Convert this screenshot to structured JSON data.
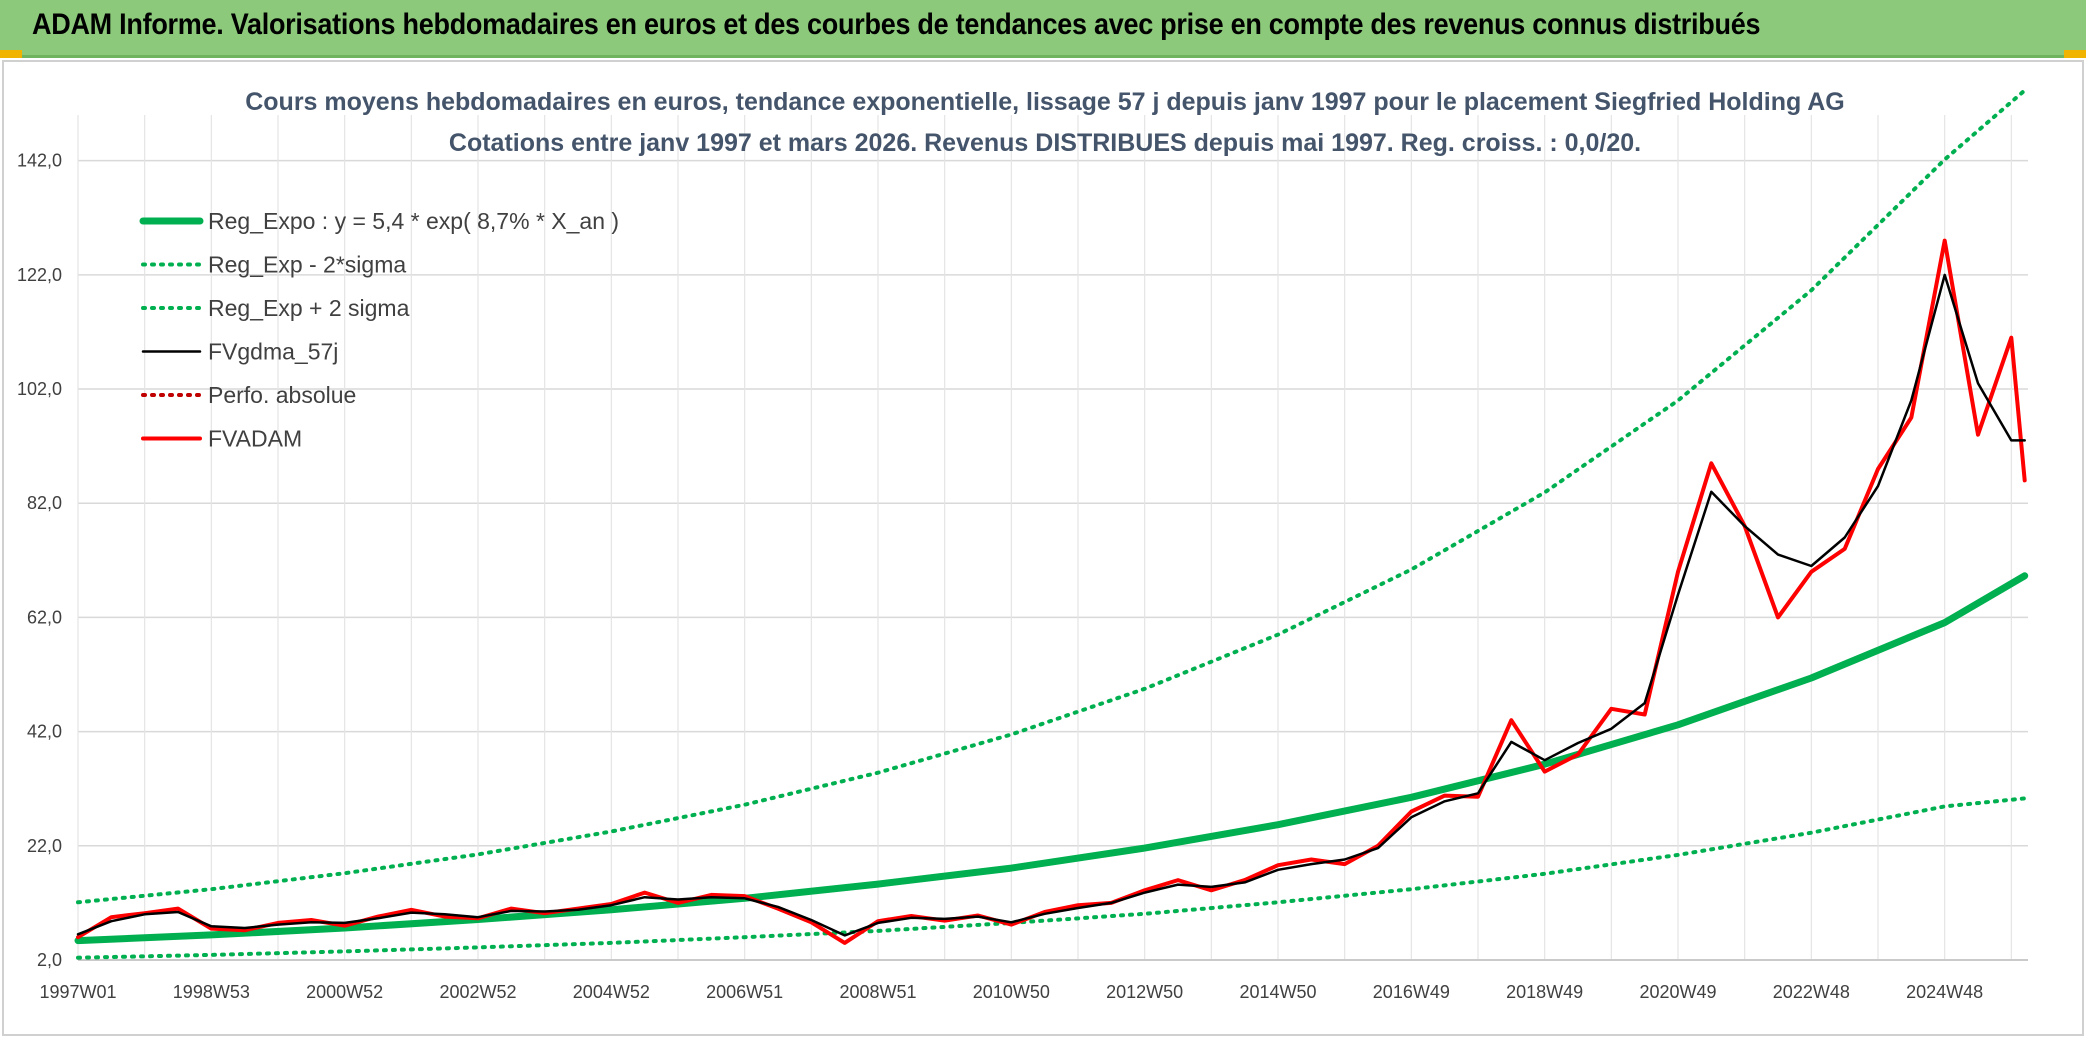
{
  "banner": {
    "title": "ADAM Informe. Valorisations hebdomadaires en euros et des courbes de tendances avec prise en compte des revenus connus distribués",
    "background": "#8cc97a",
    "corner_color": "#f0b400"
  },
  "chart_data": {
    "type": "line",
    "title": "Cours moyens hebdomadaires en euros, tendance exponentielle, lissage 57 j depuis janv 1997 pour le placement Siegfried Holding AG",
    "subtitle": "Cotations entre janv 1997 et mars 2026. Revenus DISTRIBUES depuis mai 1997. Reg. croiss. : 0,0/20.",
    "xlabel": "",
    "ylabel": "",
    "x_range": [
      1997.0,
      2026.25
    ],
    "ylim": [
      2.0,
      150.0
    ],
    "yticks": [
      2.0,
      22.0,
      42.0,
      62.0,
      82.0,
      102.0,
      122.0,
      142.0
    ],
    "ytick_labels": [
      "2,0",
      "22,0",
      "42,0",
      "62,0",
      "82,0",
      "102,0",
      "122,0",
      "142,0"
    ],
    "xticks": [
      1997.0,
      1999.0,
      2001.0,
      2003.0,
      2005.0,
      2007.0,
      2009.0,
      2011.0,
      2013.0,
      2015.0,
      2017.0,
      2019.0,
      2021.0,
      2023.0,
      2025.0
    ],
    "xtick_labels": [
      "1997W01",
      "1998W53",
      "2000W52",
      "2002W52",
      "2004W52",
      "2006W51",
      "2008W51",
      "2010W50",
      "2012W50",
      "2014W50",
      "2016W49",
      "2018W49",
      "2020W49",
      "2022W48",
      "2024W48"
    ],
    "grid": true,
    "legend_position": "top-left",
    "series": [
      {
        "name": "Reg_Expo : y = 5,4 * exp( 8,7% *  X_an )",
        "color": "#00b050",
        "style": "solid-thick",
        "x": [
          1997.0,
          1999.0,
          2001.0,
          2003.0,
          2005.0,
          2007.0,
          2009.0,
          2011.0,
          2013.0,
          2015.0,
          2017.0,
          2019.0,
          2021.0,
          2023.0,
          2025.0,
          2026.2
        ],
        "values": [
          5.4,
          6.4,
          7.6,
          9.1,
          10.8,
          12.8,
          15.3,
          18.1,
          21.6,
          25.7,
          30.5,
          36.3,
          43.2,
          51.4,
          61.1,
          69.3
        ]
      },
      {
        "name": "Reg_Exp - 2*sigma",
        "color": "#00b050",
        "style": "dotted",
        "x": [
          1997.0,
          1999.0,
          2001.0,
          2003.0,
          2005.0,
          2007.0,
          2009.0,
          2011.0,
          2013.0,
          2015.0,
          2017.0,
          2019.0,
          2021.0,
          2023.0,
          2025.0,
          2026.2
        ],
        "values": [
          2.4,
          2.9,
          3.5,
          4.2,
          5.0,
          6.0,
          7.1,
          8.5,
          10.1,
          12.1,
          14.4,
          17.1,
          20.4,
          24.3,
          28.9,
          30.3
        ]
      },
      {
        "name": "Reg_Exp + 2 sigma",
        "color": "#00b050",
        "style": "dotted",
        "x": [
          1997.0,
          1999.0,
          2001.0,
          2003.0,
          2005.0,
          2007.0,
          2009.0,
          2011.0,
          2013.0,
          2015.0,
          2017.0,
          2019.0,
          2021.0,
          2023.0,
          2025.0,
          2026.2
        ],
        "values": [
          12.1,
          14.4,
          17.2,
          20.5,
          24.5,
          29.2,
          34.8,
          41.5,
          49.5,
          59.0,
          70.4,
          83.9,
          100.0,
          119.3,
          142.2,
          154.3
        ]
      },
      {
        "name": "FVgdma_57j",
        "color": "#000000",
        "style": "solid",
        "x": [
          1997.0,
          1997.5,
          1998.0,
          1998.5,
          1999.0,
          1999.5,
          2000.0,
          2000.5,
          2001.0,
          2001.5,
          2002.0,
          2002.5,
          2003.0,
          2003.5,
          2004.0,
          2004.5,
          2005.0,
          2005.5,
          2006.0,
          2006.5,
          2007.0,
          2007.5,
          2008.0,
          2008.5,
          2009.0,
          2009.5,
          2010.0,
          2010.5,
          2011.0,
          2011.5,
          2012.0,
          2012.5,
          2013.0,
          2013.5,
          2014.0,
          2014.5,
          2015.0,
          2015.5,
          2016.0,
          2016.5,
          2017.0,
          2017.5,
          2018.0,
          2018.5,
          2019.0,
          2019.5,
          2020.0,
          2020.5,
          2021.0,
          2021.5,
          2022.0,
          2022.5,
          2023.0,
          2023.5,
          2024.0,
          2024.5,
          2025.0,
          2025.5,
          2026.0,
          2026.2
        ],
        "values": [
          6.5,
          8.8,
          10.0,
          10.4,
          7.9,
          7.6,
          8.2,
          8.6,
          8.5,
          9.3,
          10.3,
          10.0,
          9.5,
          10.6,
          10.5,
          10.8,
          11.6,
          13.0,
          12.6,
          13.0,
          12.8,
          11.3,
          9.0,
          6.3,
          8.5,
          9.4,
          9.2,
          9.6,
          8.6,
          10.1,
          11.1,
          12.0,
          13.8,
          15.2,
          14.8,
          15.6,
          17.8,
          18.8,
          19.6,
          21.6,
          27.0,
          29.8,
          31.2,
          40.2,
          37.0,
          40.0,
          42.5,
          47.0,
          66.0,
          84.0,
          78.0,
          73.0,
          71.0,
          76.0,
          85.0,
          100.0,
          122.0,
          103.0,
          93.0,
          93.0
        ]
      },
      {
        "name": "Perfo. absolue",
        "color": "#c00000",
        "style": "dotted",
        "x": [],
        "values": []
      },
      {
        "name": "FVADAM",
        "color": "#ff0000",
        "style": "solid-thick",
        "x": [
          1997.0,
          1997.5,
          1998.0,
          1998.5,
          1999.0,
          1999.5,
          2000.0,
          2000.5,
          2001.0,
          2001.5,
          2002.0,
          2002.5,
          2003.0,
          2003.5,
          2004.0,
          2004.5,
          2005.0,
          2005.5,
          2006.0,
          2006.5,
          2007.0,
          2007.5,
          2008.0,
          2008.5,
          2009.0,
          2009.5,
          2010.0,
          2010.5,
          2011.0,
          2011.5,
          2012.0,
          2012.5,
          2013.0,
          2013.5,
          2014.0,
          2014.5,
          2015.0,
          2015.5,
          2016.0,
          2016.5,
          2017.0,
          2017.5,
          2018.0,
          2018.5,
          2019.0,
          2019.5,
          2020.0,
          2020.5,
          2021.0,
          2021.5,
          2022.0,
          2022.5,
          2023.0,
          2023.5,
          2024.0,
          2024.5,
          2025.0,
          2025.5,
          2026.0,
          2026.2
        ],
        "values": [
          6.0,
          9.5,
          10.2,
          11.0,
          7.5,
          7.2,
          8.5,
          9.0,
          8.0,
          9.6,
          10.8,
          9.6,
          9.3,
          11.0,
          10.2,
          11.0,
          11.8,
          13.8,
          12.0,
          13.4,
          13.2,
          11.0,
          8.6,
          5.0,
          8.8,
          9.7,
          8.9,
          9.8,
          8.2,
          10.4,
          11.6,
          12.0,
          14.2,
          16.0,
          14.2,
          16.0,
          18.6,
          19.6,
          18.8,
          22.0,
          28.0,
          30.8,
          30.6,
          44.0,
          35.0,
          38.0,
          46.0,
          45.0,
          70.0,
          89.0,
          78.0,
          62.0,
          70.0,
          74.0,
          88.0,
          97.0,
          128.0,
          94.0,
          111.0,
          86.0
        ]
      }
    ]
  }
}
